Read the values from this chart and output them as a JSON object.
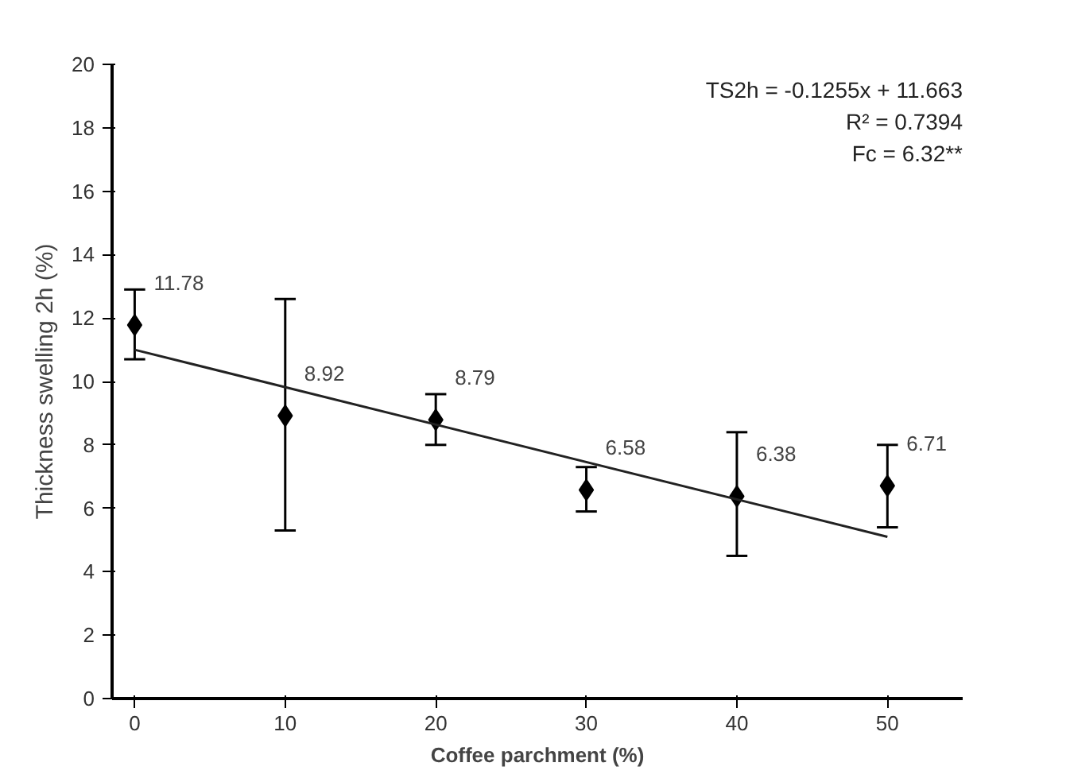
{
  "chart_data": {
    "type": "scatter",
    "xlabel": "Coffee parchment (%)",
    "ylabel": "Thickness swelling 2h (%)",
    "x": [
      0,
      10,
      20,
      30,
      40,
      50
    ],
    "series": [
      {
        "color": "#000000",
        "values": [
          11.78,
          8.92,
          8.79,
          6.58,
          6.38,
          6.71
        ],
        "value_labels": [
          "11.78",
          "8.92",
          "8.79",
          "6.58",
          "6.38",
          "6.71"
        ],
        "errors": [
          [
            10.7,
            12.9
          ],
          [
            5.3,
            12.6
          ],
          [
            8.0,
            9.6
          ],
          [
            5.9,
            7.3
          ],
          [
            4.5,
            8.4
          ],
          [
            5.4,
            8.0
          ]
        ],
        "marker": "diamond"
      },
      {
        "type": "line",
        "color": "#222222",
        "x": [
          0,
          50
        ],
        "values": [
          11.0,
          5.1
        ],
        "line_style": "solid"
      }
    ],
    "annotations": [
      "TS2h = -0.1255x + 11.663",
      "R² = 0.7394",
      "Fc = 6.32**"
    ],
    "xlim": [
      -1.5,
      55
    ],
    "ylim": [
      0,
      20
    ],
    "xticks": [
      0,
      10,
      20,
      30,
      40,
      50
    ],
    "yticks": [
      0,
      2,
      4,
      6,
      8,
      10,
      12,
      14,
      16,
      18,
      20
    ],
    "grid": false
  }
}
